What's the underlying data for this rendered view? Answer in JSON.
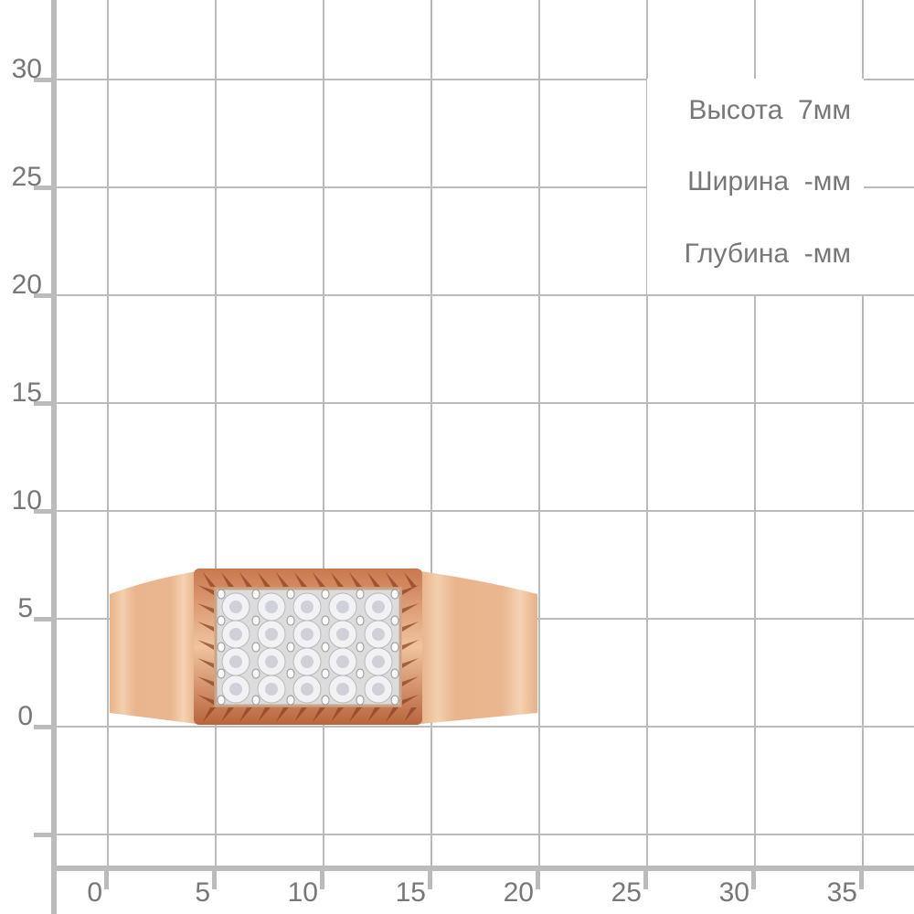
{
  "y_axis": {
    "labels": [
      "30",
      "25",
      "20",
      "15",
      "10",
      "5",
      "0"
    ]
  },
  "x_axis": {
    "labels": [
      "0",
      "5",
      "10",
      "15",
      "20",
      "25",
      "30",
      "35"
    ]
  },
  "dimensions": {
    "height": "Высота  7мм",
    "width": "Ширина  -мм",
    "depth": "Глубина  -мм"
  },
  "colors": {
    "grid": "#bbbbbb",
    "text": "#777777",
    "gold": "#e9b48c",
    "plate": "#e6e6e6"
  }
}
